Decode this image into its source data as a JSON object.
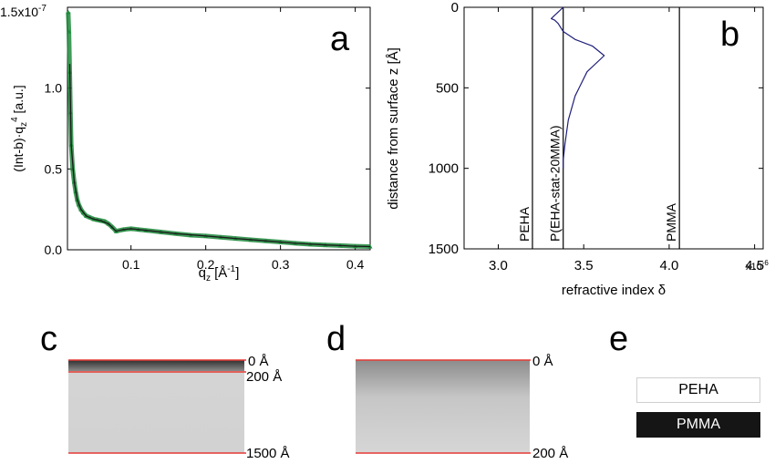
{
  "chart_data": [
    {
      "panel": "a",
      "type": "scatter",
      "xlabel": "q_z [Å^-1]",
      "ylabel": "(Int-b)·q_z^4 [a.u.]",
      "scale_label": "1.5x10^-7",
      "xlim": [
        0.015,
        0.42
      ],
      "ylim": [
        0,
        1.5
      ],
      "xticks": [
        "0.1",
        "0.2",
        "0.3",
        "0.4"
      ],
      "xtick_values": [
        0.1,
        0.2,
        0.3,
        0.4
      ],
      "yticks": [
        "0.0",
        "0.5",
        "1.0"
      ],
      "ytick_values": [
        0.0,
        0.5,
        1.0
      ],
      "series": [
        {
          "role": "data points",
          "color": "#1f8a3c",
          "x": [
            0.016,
            0.017,
            0.018,
            0.019,
            0.02,
            0.022,
            0.024,
            0.026,
            0.028,
            0.03,
            0.033,
            0.036,
            0.04,
            0.045,
            0.05,
            0.055,
            0.06,
            0.065,
            0.07,
            0.075,
            0.08,
            0.09,
            0.1,
            0.11,
            0.12,
            0.14,
            0.16,
            0.18,
            0.2,
            0.22,
            0.24,
            0.26,
            0.28,
            0.3,
            0.32,
            0.34,
            0.36,
            0.38,
            0.4,
            0.42
          ],
          "y": [
            1.47,
            1.35,
            1.1,
            0.85,
            0.65,
            0.5,
            0.42,
            0.36,
            0.31,
            0.28,
            0.25,
            0.23,
            0.21,
            0.2,
            0.19,
            0.185,
            0.18,
            0.175,
            0.16,
            0.14,
            0.115,
            0.125,
            0.13,
            0.125,
            0.12,
            0.11,
            0.1,
            0.09,
            0.085,
            0.078,
            0.07,
            0.062,
            0.055,
            0.048,
            0.04,
            0.034,
            0.03,
            0.026,
            0.022,
            0.02
          ]
        },
        {
          "role": "model fit",
          "color": "#1a1a1a",
          "x": [
            0.018,
            0.02,
            0.024,
            0.028,
            0.033,
            0.04,
            0.05,
            0.06,
            0.07,
            0.08,
            0.09,
            0.1,
            0.12,
            0.16,
            0.2,
            0.24,
            0.28,
            0.32,
            0.36,
            0.4,
            0.42
          ],
          "y": [
            1.15,
            0.65,
            0.42,
            0.31,
            0.25,
            0.21,
            0.19,
            0.18,
            0.16,
            0.115,
            0.125,
            0.13,
            0.12,
            0.1,
            0.085,
            0.07,
            0.055,
            0.04,
            0.03,
            0.022,
            0.02
          ]
        }
      ]
    },
    {
      "panel": "b",
      "type": "line",
      "xlabel": "refractive index δ",
      "ylabel": "distance from surface z [Å]",
      "scale_label": "x10^-6",
      "xlim": [
        2.8,
        4.55
      ],
      "ylim": [
        1500,
        0
      ],
      "xticks": [
        "3.0",
        "3.5",
        "4.0",
        "4.5"
      ],
      "xtick_values": [
        3.0,
        3.5,
        4.0,
        4.5
      ],
      "yticks": [
        "0",
        "500",
        "1000",
        "1500"
      ],
      "ytick_values": [
        0,
        500,
        1000,
        1500
      ],
      "reference_lines": [
        {
          "label": "PEHA",
          "x": 3.2
        },
        {
          "label": "P(EHA-stat-20MMA)",
          "x": 3.38
        },
        {
          "label": "PMMA",
          "x": 4.06
        }
      ],
      "series": [
        {
          "role": "profile",
          "color": "#1f1f7a",
          "x": [
            3.38,
            3.38,
            3.39,
            3.41,
            3.45,
            3.52,
            3.62,
            3.55,
            3.45,
            3.38,
            3.35,
            3.33,
            3.31,
            3.32,
            3.33,
            3.34,
            3.35,
            3.36,
            3.37,
            3.375,
            3.38
          ],
          "y": [
            1000,
            950,
            850,
            700,
            550,
            400,
            300,
            240,
            200,
            150,
            100,
            80,
            70,
            60,
            50,
            40,
            30,
            20,
            10,
            5,
            0
          ]
        }
      ]
    }
  ],
  "panels": {
    "a": {
      "letter": "a"
    },
    "b": {
      "letter": "b"
    },
    "c": {
      "letter": "c",
      "labels": [
        "0 Å",
        "200 Å",
        "1500 Å"
      ]
    },
    "d": {
      "letter": "d",
      "labels": [
        "0 Å",
        "200 Å"
      ]
    },
    "e": {
      "letter": "e",
      "legend": [
        "PEHA",
        "PMMA"
      ]
    }
  },
  "colors": {
    "red_line": "#e53935",
    "green": "#1f8a3c",
    "navy": "#1f1f7a",
    "pmma": "#151515",
    "peha": "#ffffff"
  }
}
